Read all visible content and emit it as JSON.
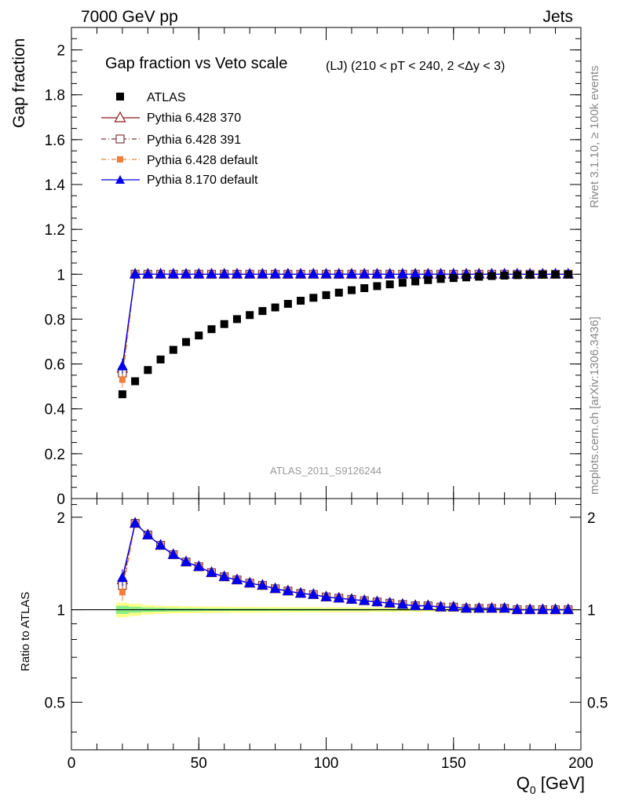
{
  "header": {
    "left": "7000 GeV pp",
    "right": "Jets"
  },
  "side_labels": {
    "rivet": "Rivet 3.1.10, ≥ 100k events",
    "mcplots": "mcplots.cern.ch [arXiv:1306.3436]"
  },
  "colors": {
    "atlas": "#000000",
    "p370": "#8b1a1a",
    "p391": "#7a3b3b",
    "p6def": "#f07f3c",
    "p8def": "#0000ee",
    "band_outer": "#ffff88",
    "band_inner": "#88ee88"
  },
  "chart_data": [
    {
      "type": "scatter",
      "title": "Gap fraction vs Veto scale",
      "subtitle": "(LJ) (210 < pT < 240, 2 <Δy < 3)",
      "watermark": "ATLAS_2011_S9126244",
      "xlabel": "",
      "ylabel": "Gap fraction",
      "xlim": [
        0,
        200
      ],
      "ylim": [
        0,
        2.1
      ],
      "yticks": [
        0,
        0.2,
        0.4,
        0.6,
        0.8,
        1,
        1.2,
        1.4,
        1.6,
        1.8,
        2
      ],
      "ytick_labels": [
        "0",
        "0.2",
        "0.4",
        "0.6",
        "0.8",
        "1",
        "1.2",
        "1.4",
        "1.6",
        "1.8",
        "2"
      ],
      "x": [
        20,
        25,
        30,
        35,
        40,
        45,
        50,
        55,
        60,
        65,
        70,
        75,
        80,
        85,
        90,
        95,
        100,
        105,
        110,
        115,
        120,
        125,
        130,
        135,
        140,
        145,
        150,
        155,
        160,
        165,
        170,
        175,
        180,
        185,
        190,
        195
      ],
      "legend": [
        "ATLAS",
        "Pythia 6.428 370",
        "Pythia 6.428 391",
        "Pythia 6.428 default",
        "Pythia 8.170 default"
      ],
      "series": [
        {
          "name": "ATLAS",
          "key": "atlas",
          "values": [
            0.465,
            0.523,
            0.573,
            0.62,
            0.663,
            0.698,
            0.727,
            0.755,
            0.778,
            0.8,
            0.818,
            0.836,
            0.852,
            0.868,
            0.882,
            0.895,
            0.907,
            0.918,
            0.929,
            0.938,
            0.947,
            0.955,
            0.962,
            0.968,
            0.974,
            0.979,
            0.983,
            0.986,
            0.989,
            0.992,
            0.994,
            0.996,
            0.997,
            0.998,
            0.999,
            0.999
          ]
        },
        {
          "name": "Pythia 6.428 370",
          "key": "p370",
          "values": [
            0.58,
            1,
            1,
            1,
            1,
            1,
            1,
            1,
            1,
            1,
            1,
            1,
            1,
            1,
            1,
            1,
            1,
            1,
            1,
            1,
            1,
            1,
            1,
            1,
            1,
            1,
            1,
            1,
            1,
            1,
            1,
            1,
            1,
            1,
            1,
            1
          ]
        },
        {
          "name": "Pythia 6.428 391",
          "key": "p391",
          "values": [
            0.56,
            1,
            1,
            1,
            1,
            1,
            1,
            1,
            1,
            1,
            1,
            1,
            1,
            1,
            1,
            1,
            1,
            1,
            1,
            1,
            1,
            1,
            1,
            1,
            1,
            1,
            1,
            1,
            1,
            1,
            1,
            1,
            1,
            1,
            1,
            1
          ]
        },
        {
          "name": "Pythia 6.428 default",
          "key": "p6def",
          "values": [
            0.53,
            1,
            1,
            1,
            1,
            1,
            1,
            1,
            1,
            1,
            1,
            1,
            1,
            1,
            1,
            1,
            1,
            1,
            1,
            1,
            1,
            1,
            1,
            1,
            1,
            1,
            1,
            1,
            1,
            1,
            1,
            1,
            1,
            1,
            1,
            1
          ]
        },
        {
          "name": "Pythia 8.170 default",
          "key": "p8def",
          "values": [
            0.59,
            1,
            1,
            1,
            1,
            1,
            1,
            1,
            1,
            1,
            1,
            1,
            1,
            1,
            1,
            1,
            1,
            1,
            1,
            1,
            1,
            1,
            1,
            1,
            1,
            1,
            1,
            1,
            1,
            1,
            1,
            1,
            1,
            1,
            1,
            1
          ]
        }
      ]
    },
    {
      "type": "line",
      "title": "",
      "xlabel": "Q",
      "xlabel_sub": "0",
      "xlabel_unit": " [GeV]",
      "ylabel": "Ratio to ATLAS",
      "xlim": [
        0,
        200
      ],
      "ylim": [
        0.35,
        2.3
      ],
      "xticks": [
        0,
        50,
        100,
        150,
        200
      ],
      "xtick_labels": [
        "0",
        "50",
        "100",
        "150",
        "200"
      ],
      "yticks": [
        0.5,
        1,
        2
      ],
      "ytick_labels": [
        "0.5",
        "1",
        "2"
      ],
      "x": [
        20,
        25,
        30,
        35,
        40,
        45,
        50,
        55,
        60,
        65,
        70,
        75,
        80,
        85,
        90,
        95,
        100,
        105,
        110,
        115,
        120,
        125,
        130,
        135,
        140,
        145,
        150,
        155,
        160,
        165,
        170,
        175,
        180,
        185,
        190,
        195
      ],
      "band_outer": [
        0.055,
        0.045,
        0.035,
        0.03,
        0.028,
        0.026,
        0.025,
        0.024,
        0.023,
        0.022,
        0.022,
        0.021,
        0.021,
        0.02,
        0.02,
        0.02,
        0.019,
        0.019,
        0.018,
        0.018,
        0.017,
        0.017,
        0.016,
        0.016,
        0.015,
        0.015,
        0.014,
        0.014,
        0.013,
        0.013,
        0.012,
        0.012,
        0.011,
        0.011,
        0.01,
        0.01
      ],
      "band_inner": [
        0.03,
        0.022,
        0.017,
        0.015,
        0.013,
        0.012,
        0.011,
        0.01,
        0.01,
        0.009,
        0.009,
        0.009,
        0.008,
        0.008,
        0.008,
        0.008,
        0.007,
        0.007,
        0.007,
        0.007,
        0.006,
        0.006,
        0.006,
        0.006,
        0.005,
        0.005,
        0.005,
        0.005,
        0.005,
        0.004,
        0.004,
        0.004,
        0.004,
        0.004,
        0.003,
        0.003
      ],
      "series": [
        {
          "name": "Pythia 6.428 370",
          "key": "p370",
          "values": [
            1.25,
            1.91,
            1.75,
            1.62,
            1.51,
            1.43,
            1.38,
            1.32,
            1.28,
            1.25,
            1.22,
            1.2,
            1.17,
            1.15,
            1.13,
            1.12,
            1.1,
            1.09,
            1.08,
            1.07,
            1.06,
            1.05,
            1.04,
            1.03,
            1.03,
            1.02,
            1.02,
            1.01,
            1.01,
            1.01,
            1.01,
            1.0,
            1.0,
            1.0,
            1.0,
            1.0
          ]
        },
        {
          "name": "Pythia 6.428 391",
          "key": "p391",
          "values": [
            1.2,
            1.91,
            1.75,
            1.62,
            1.51,
            1.43,
            1.38,
            1.32,
            1.28,
            1.25,
            1.22,
            1.2,
            1.17,
            1.15,
            1.13,
            1.12,
            1.1,
            1.09,
            1.08,
            1.07,
            1.06,
            1.05,
            1.04,
            1.03,
            1.03,
            1.02,
            1.02,
            1.01,
            1.01,
            1.01,
            1.01,
            1.0,
            1.0,
            1.0,
            1.0,
            1.0
          ]
        },
        {
          "name": "Pythia 6.428 default",
          "key": "p6def",
          "values": [
            1.14,
            1.91,
            1.75,
            1.62,
            1.51,
            1.43,
            1.38,
            1.32,
            1.28,
            1.25,
            1.22,
            1.2,
            1.17,
            1.15,
            1.13,
            1.12,
            1.1,
            1.09,
            1.08,
            1.07,
            1.06,
            1.05,
            1.04,
            1.03,
            1.03,
            1.02,
            1.02,
            1.01,
            1.01,
            1.01,
            1.01,
            1.0,
            1.0,
            1.0,
            1.0,
            1.0
          ]
        },
        {
          "name": "Pythia 8.170 default",
          "key": "p8def",
          "values": [
            1.27,
            1.91,
            1.75,
            1.62,
            1.51,
            1.43,
            1.38,
            1.32,
            1.28,
            1.25,
            1.22,
            1.2,
            1.17,
            1.15,
            1.13,
            1.12,
            1.1,
            1.09,
            1.08,
            1.07,
            1.06,
            1.05,
            1.04,
            1.03,
            1.03,
            1.02,
            1.02,
            1.01,
            1.01,
            1.01,
            1.01,
            1.0,
            1.0,
            1.0,
            1.0,
            1.0
          ]
        }
      ]
    }
  ]
}
